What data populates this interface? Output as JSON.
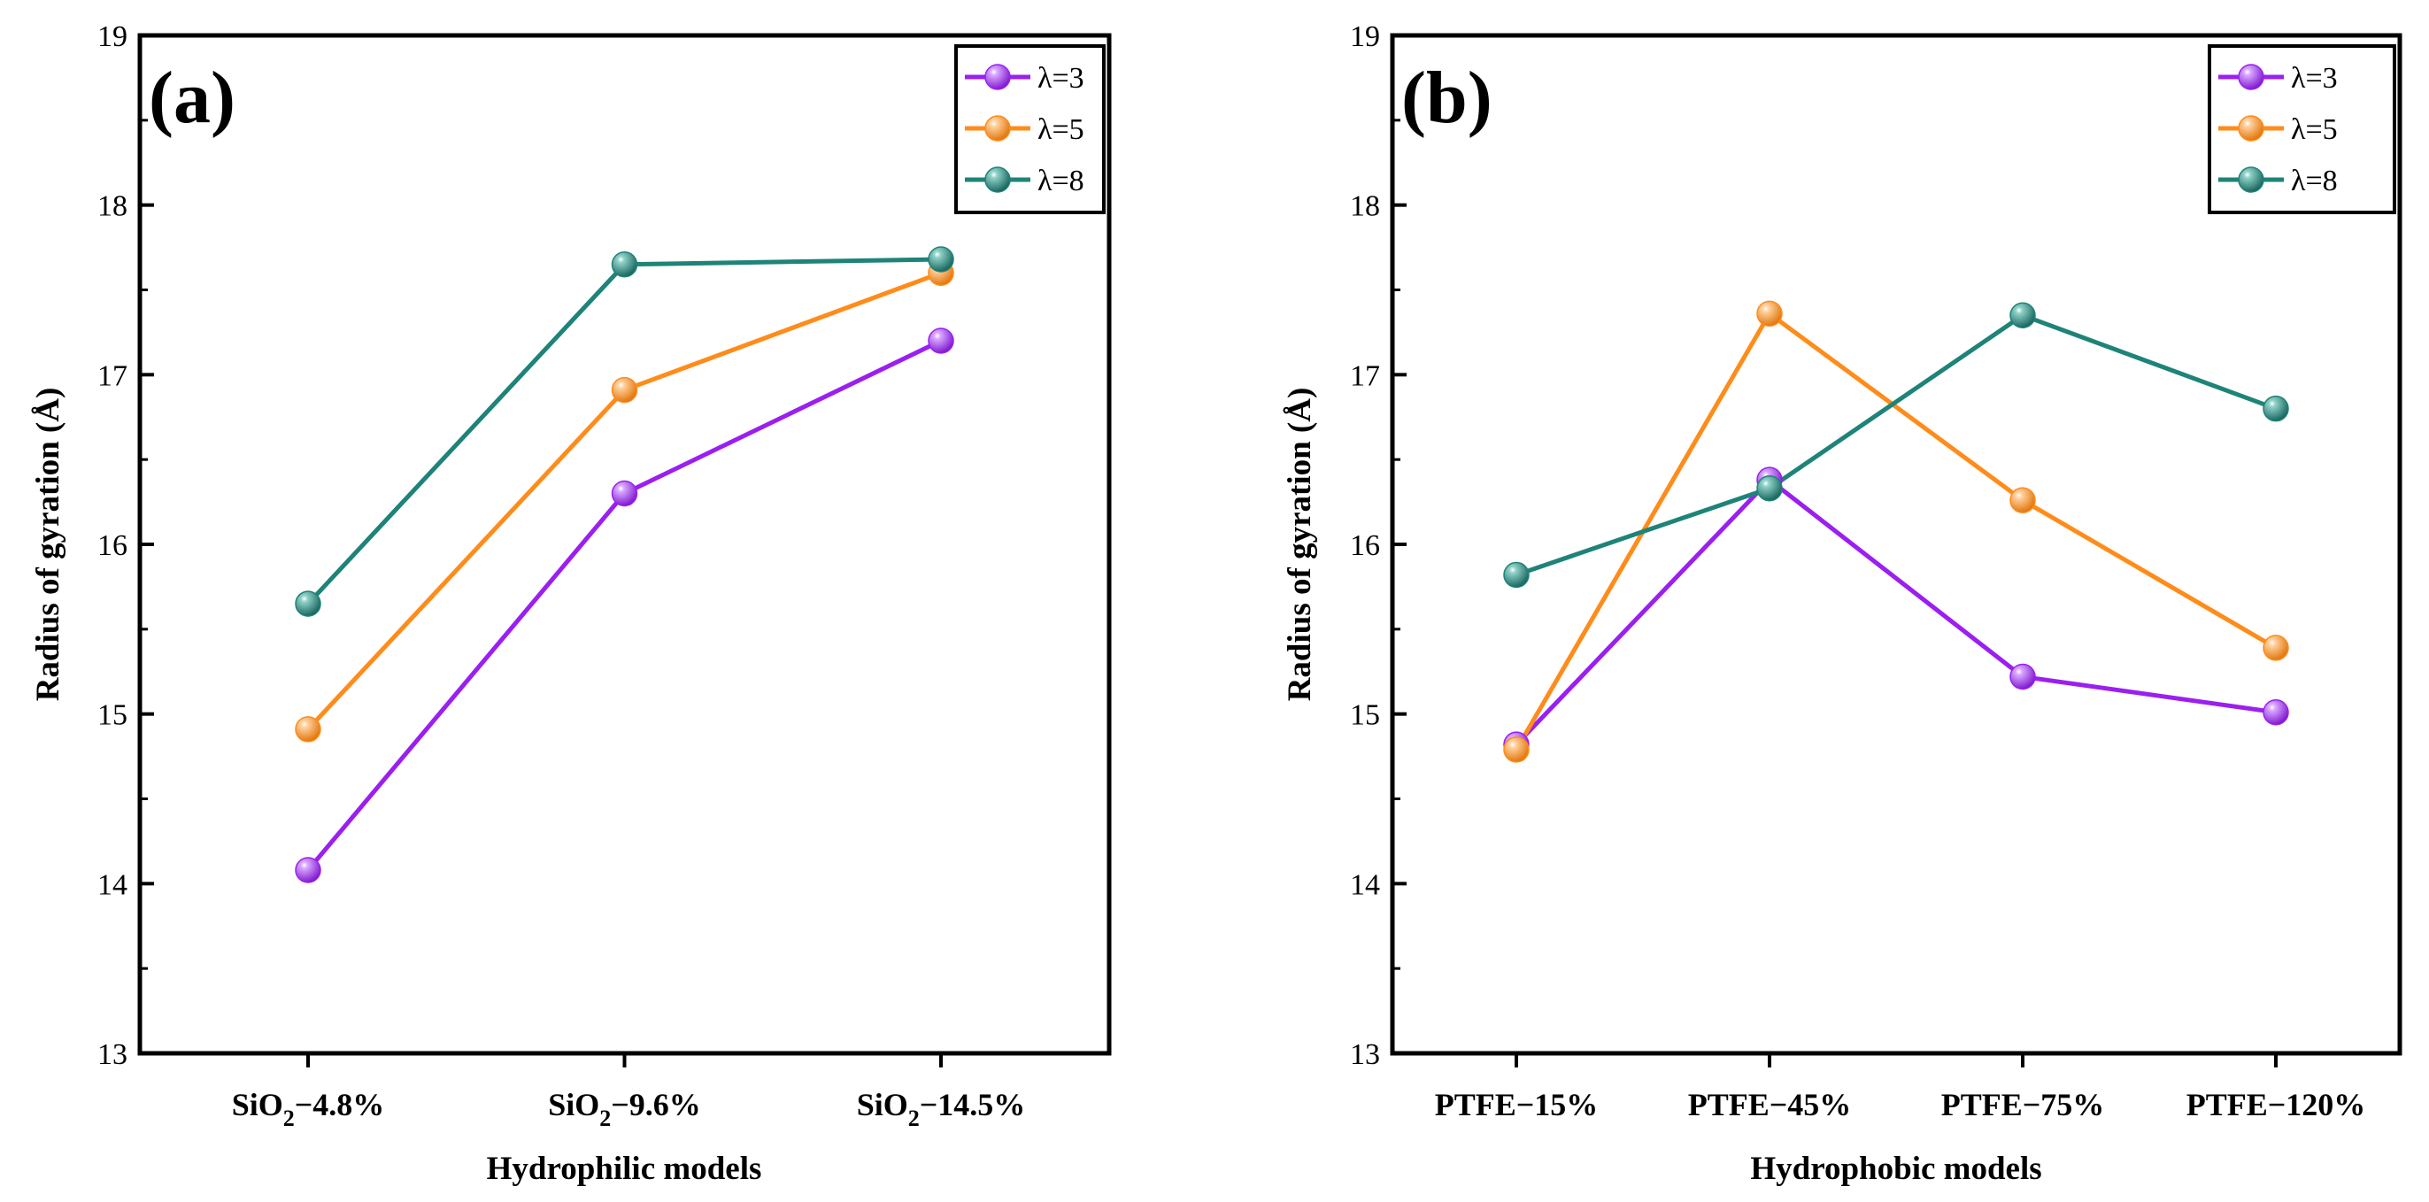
{
  "chart_data": [
    {
      "type": "line",
      "panel_label": "(a)",
      "xlabel": "Hydrophilic models",
      "ylabel": "Radius of gyration (Å)",
      "categories": [
        {
          "main": "SiO",
          "sub": "2",
          "rest": "−4.8%"
        },
        {
          "main": "SiO",
          "sub": "2",
          "rest": "−9.6%"
        },
        {
          "main": "SiO",
          "sub": "2",
          "rest": "−14.5%"
        }
      ],
      "ylim": [
        13,
        19
      ],
      "yticks": [
        "13",
        "14",
        "15",
        "16",
        "17",
        "18",
        "19"
      ],
      "legend_position": "top-right",
      "series": [
        {
          "name": "λ=3",
          "color": "#9b1ff0",
          "values": [
            14.08,
            16.3,
            17.2
          ]
        },
        {
          "name": "λ=5",
          "color": "#ff8c1a",
          "values": [
            14.91,
            16.91,
            17.6
          ]
        },
        {
          "name": "λ=8",
          "color": "#1e8378",
          "values": [
            15.65,
            17.65,
            17.68
          ]
        }
      ]
    },
    {
      "type": "line",
      "panel_label": "(b)",
      "xlabel": "Hydrophobic models",
      "ylabel": "Radius of gyration (Å)",
      "categories": [
        {
          "main": "PTFE−15%"
        },
        {
          "main": "PTFE−45%"
        },
        {
          "main": "PTFE−75%"
        },
        {
          "main": "PTFE−120%"
        }
      ],
      "ylim": [
        13,
        19
      ],
      "yticks": [
        "13",
        "14",
        "15",
        "16",
        "17",
        "18",
        "19"
      ],
      "legend_position": "top-right",
      "series": [
        {
          "name": "λ=3",
          "color": "#9b1ff0",
          "values": [
            14.82,
            16.38,
            15.22,
            15.01
          ]
        },
        {
          "name": "λ=5",
          "color": "#ff8c1a",
          "values": [
            14.79,
            17.36,
            16.26,
            15.39
          ]
        },
        {
          "name": "λ=8",
          "color": "#1e8378",
          "values": [
            15.82,
            16.33,
            17.35,
            16.8
          ]
        }
      ]
    }
  ]
}
